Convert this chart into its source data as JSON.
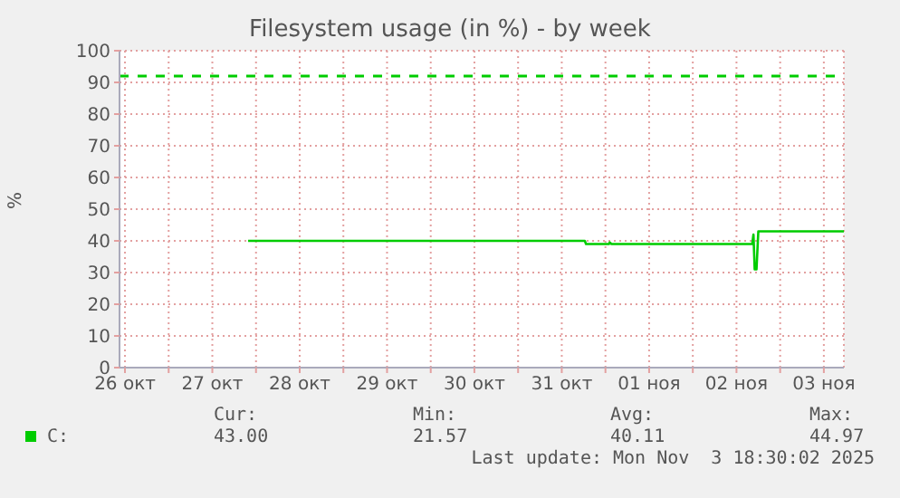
{
  "chart_data": {
    "type": "line",
    "title": "Filesystem usage (in %) - by week",
    "ylabel": "%",
    "x": [
      "2025-10-27T21:50",
      "2025-10-31T18:20",
      "2025-10-31T18:40",
      "2025-11-01T01:00",
      "2025-11-01T01:10",
      "2025-11-01T01:40",
      "2025-11-02T16:20",
      "2025-11-02T16:40",
      "2025-11-02T17:00",
      "2025-11-02T17:30",
      "2025-11-02T18:00",
      "2025-11-03T17:30"
    ],
    "series": [
      {
        "name": "C:",
        "color": "#00cc00",
        "values": [
          40,
          40,
          39,
          39,
          39.5,
          39,
          39,
          42,
          31,
          31,
          43,
          43
        ]
      }
    ],
    "xlim": [
      "2025-10-26T10:30",
      "2025-11-03T17:30"
    ],
    "xticks": [
      {
        "value": "2025-10-26T12:00",
        "label": "26 окт"
      },
      {
        "value": "2025-10-27T00:00",
        "label": null
      },
      {
        "value": "2025-10-27T12:00",
        "label": "27 окт"
      },
      {
        "value": "2025-10-28T00:00",
        "label": null
      },
      {
        "value": "2025-10-28T12:00",
        "label": "28 окт"
      },
      {
        "value": "2025-10-29T00:00",
        "label": null
      },
      {
        "value": "2025-10-29T12:00",
        "label": "29 окт"
      },
      {
        "value": "2025-10-30T00:00",
        "label": null
      },
      {
        "value": "2025-10-30T12:00",
        "label": "30 окт"
      },
      {
        "value": "2025-10-31T00:00",
        "label": null
      },
      {
        "value": "2025-10-31T12:00",
        "label": "31 окт"
      },
      {
        "value": "2025-11-01T00:00",
        "label": null
      },
      {
        "value": "2025-11-01T12:00",
        "label": "01 ноя"
      },
      {
        "value": "2025-11-02T00:00",
        "label": null
      },
      {
        "value": "2025-11-02T12:00",
        "label": "02 ноя"
      },
      {
        "value": "2025-11-03T00:00",
        "label": null
      },
      {
        "value": "2025-11-03T12:00",
        "label": "03 ноя"
      }
    ],
    "ylim": [
      0,
      100
    ],
    "yticks": [
      0,
      10,
      20,
      30,
      40,
      50,
      60,
      70,
      80,
      90,
      100
    ],
    "grid": true,
    "legend": "bottom",
    "marker": "none",
    "line_style": "solid",
    "ref_lines": [
      {
        "axis": "y",
        "value": 92,
        "color": "#00cc00",
        "line_style": "dashed"
      }
    ],
    "annotations": [
      "Cur:",
      "Min:",
      "Avg:",
      "Max:",
      "43.00",
      "21.57",
      "40.11",
      "44.97",
      "Last update: Mon Nov  3 18:30:02 2025"
    ]
  }
}
